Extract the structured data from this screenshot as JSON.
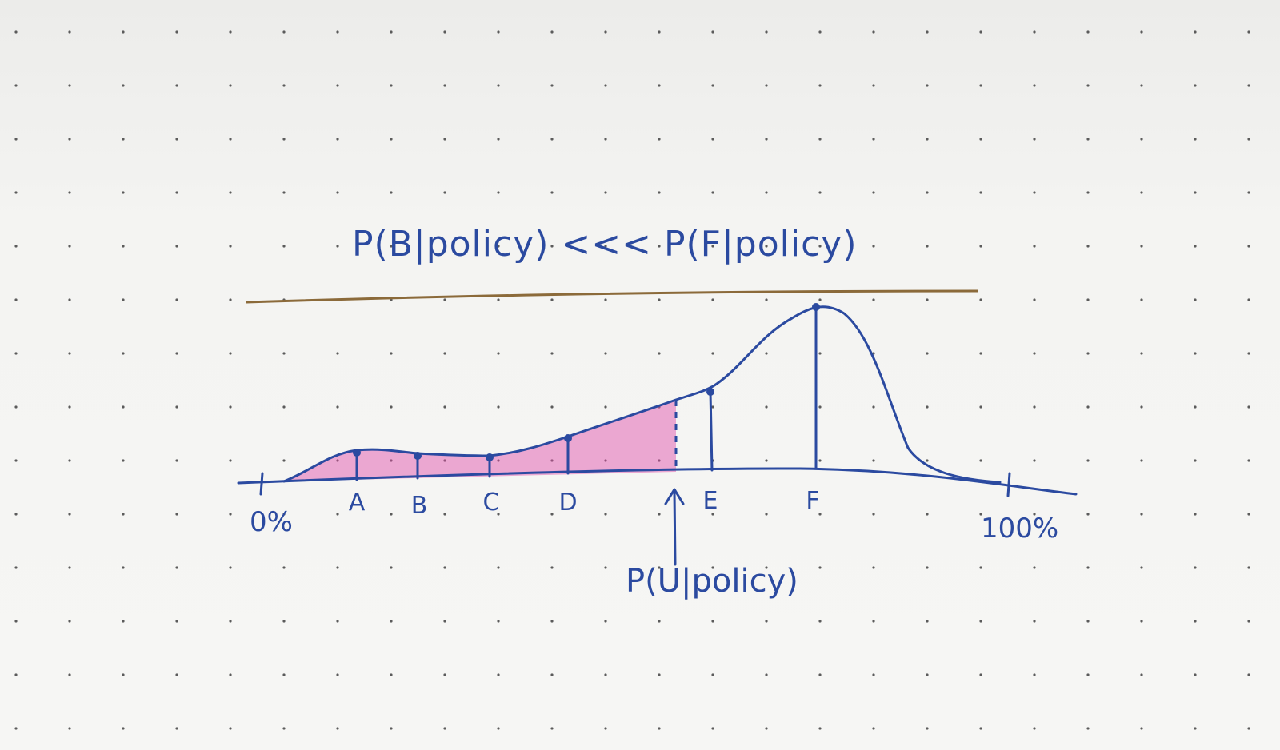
{
  "title": "P(B|policy) <<< P(F|policy)",
  "axis": {
    "left_label": "0%",
    "right_label": "100%"
  },
  "points": [
    {
      "label": "A"
    },
    {
      "label": "B"
    },
    {
      "label": "C"
    },
    {
      "label": "D"
    },
    {
      "label": "E"
    },
    {
      "label": "F"
    }
  ],
  "marker": {
    "label": "P(U|policy)"
  },
  "colors": {
    "ink": "#2b4aa0",
    "shading": "#e04aa8",
    "paper": "#f4f4f2",
    "rule": "#8b6a3a"
  }
}
